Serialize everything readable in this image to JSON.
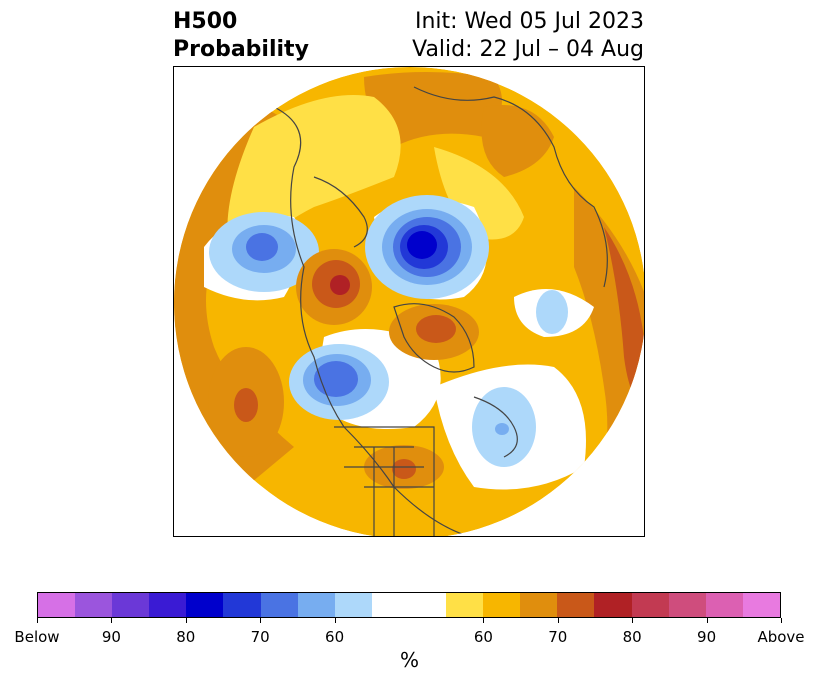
{
  "title": {
    "line1": "H500",
    "line2": "Probability",
    "init": "Init: Wed 05 Jul 2023",
    "valid": "Valid: 22 Jul – 04 Aug"
  },
  "map": {
    "projection": "north polar stereographic",
    "background_color": "#ffffff",
    "coastline_color": "#444444"
  },
  "colorbar": {
    "unit": "%",
    "colors": [
      "#d670e6",
      "#9b55dd",
      "#6b38d7",
      "#3a1bd4",
      "#0000cc",
      "#2238d7",
      "#4a73e3",
      "#77adf0",
      "#add8fa",
      "#ffffff",
      "#ffffff",
      "#ffe046",
      "#f7b600",
      "#e08e0d",
      "#c95819",
      "#b02125",
      "#c23a52",
      "#cf4d7d",
      "#dc60b2",
      "#e87ae0"
    ],
    "ticks": [
      "Below",
      "90",
      "80",
      "70",
      "60",
      "60",
      "70",
      "80",
      "90",
      "Above"
    ]
  }
}
